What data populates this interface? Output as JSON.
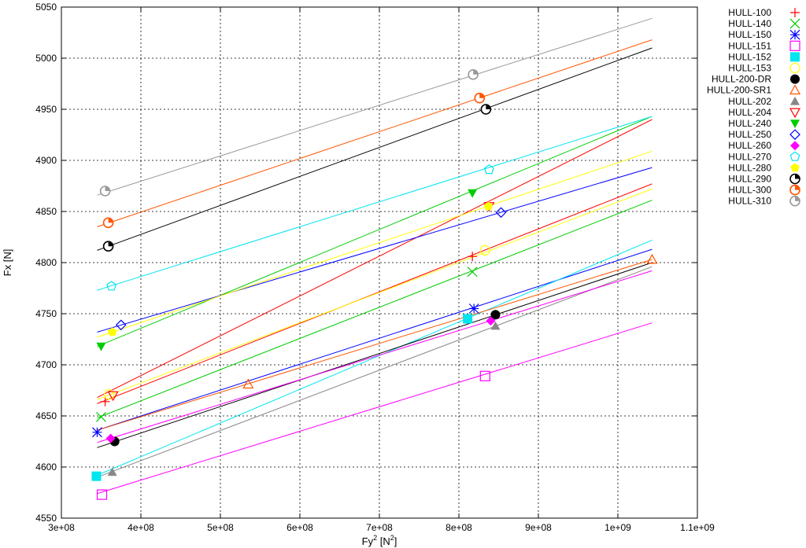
{
  "chart_data": {
    "type": "scatter",
    "title": "",
    "xlabel": "Fy",
    "xlabel_sup": "2",
    "xlabel_unit": "[N",
    "xlabel_unit_sup": "2",
    "xlabel_unit_end": "]",
    "ylabel": "Fx [N]",
    "xlim": [
      300000000,
      1100000000
    ],
    "ylim": [
      4550,
      5050
    ],
    "xticks": [
      {
        "v": 300000000,
        "label": "3e+08"
      },
      {
        "v": 400000000,
        "label": "4e+08"
      },
      {
        "v": 500000000,
        "label": "5e+08"
      },
      {
        "v": 600000000,
        "label": "6e+08"
      },
      {
        "v": 700000000,
        "label": "7e+08"
      },
      {
        "v": 800000000,
        "label": "8e+08"
      },
      {
        "v": 900000000,
        "label": "9e+08"
      },
      {
        "v": 1000000000,
        "label": "1e+09"
      },
      {
        "v": 1100000000,
        "label": "1.1e+09"
      }
    ],
    "yticks": [
      {
        "v": 4550,
        "label": "4550"
      },
      {
        "v": 4600,
        "label": "4600"
      },
      {
        "v": 4650,
        "label": "4650"
      },
      {
        "v": 4700,
        "label": "4700"
      },
      {
        "v": 4750,
        "label": "4750"
      },
      {
        "v": 4800,
        "label": "4800"
      },
      {
        "v": 4850,
        "label": "4850"
      },
      {
        "v": 4900,
        "label": "4900"
      },
      {
        "v": 4950,
        "label": "4950"
      },
      {
        "v": 5000,
        "label": "5000"
      },
      {
        "v": 5050,
        "label": "5050"
      }
    ],
    "grid": true,
    "legend_position": "outside-right-top",
    "series": [
      {
        "name": "HULL-100",
        "color": "#ff0000",
        "marker": "plus",
        "points": [
          [
            355000000,
            4664
          ],
          [
            817000000,
            4806
          ]
        ],
        "fit": [
          [
            345000000,
            4662
          ],
          [
            1043000000,
            4877
          ]
        ]
      },
      {
        "name": "HULL-140",
        "color": "#00cc00",
        "marker": "cross",
        "points": [
          [
            350000000,
            4649
          ],
          [
            817000000,
            4791
          ]
        ],
        "fit": [
          [
            345000000,
            4648
          ],
          [
            1043000000,
            4861
          ]
        ]
      },
      {
        "name": "HULL-150",
        "color": "#0000ff",
        "marker": "star",
        "points": [
          [
            345000000,
            4634
          ],
          [
            819000000,
            4755
          ]
        ],
        "fit": [
          [
            345000000,
            4636
          ],
          [
            1043000000,
            4813
          ]
        ]
      },
      {
        "name": "HULL-151",
        "color": "#ff00ff",
        "marker": "square-open",
        "points": [
          [
            351000000,
            4573
          ],
          [
            833000000,
            4689
          ]
        ],
        "fit": [
          [
            345000000,
            4574
          ],
          [
            1043000000,
            4741
          ]
        ]
      },
      {
        "name": "HULL-152",
        "color": "#00e5ee",
        "marker": "square-filled",
        "points": [
          [
            344000000,
            4591
          ],
          [
            811000000,
            4745
          ]
        ],
        "fit": [
          [
            345000000,
            4592
          ],
          [
            1043000000,
            4822
          ]
        ]
      },
      {
        "name": "HULL-153",
        "color": "#ffff00",
        "marker": "circle-open",
        "points": [
          [
            360000000,
            4671
          ],
          [
            833000000,
            4812
          ]
        ],
        "fit": [
          [
            345000000,
            4666
          ],
          [
            1043000000,
            4872
          ]
        ]
      },
      {
        "name": "HULL-200-DR",
        "color": "#000000",
        "marker": "circle-filled",
        "points": [
          [
            367000000,
            4625
          ],
          [
            846000000,
            4749
          ]
        ],
        "fit": [
          [
            345000000,
            4619
          ],
          [
            1043000000,
            4800
          ]
        ]
      },
      {
        "name": "HULL-200-SR1",
        "color": "#ff5500",
        "marker": "triangle-open",
        "points": [
          [
            535000000,
            4681
          ],
          [
            1043000000,
            4803
          ]
        ],
        "fit": [
          [
            345000000,
            4636
          ],
          [
            1043000000,
            4803
          ]
        ]
      },
      {
        "name": "HULL-202",
        "color": "#888888",
        "marker": "triangle-filled",
        "points": [
          [
            364000000,
            4595
          ],
          [
            846000000,
            4738
          ]
        ],
        "fit": [
          [
            345000000,
            4590
          ],
          [
            1043000000,
            4796
          ]
        ]
      },
      {
        "name": "HULL-204",
        "color": "#ff0000",
        "marker": "triangle-down-open",
        "points": [
          [
            365000000,
            4670
          ],
          [
            838000000,
            4855
          ]
        ],
        "fit": [
          [
            345000000,
            4668
          ],
          [
            1043000000,
            4940
          ]
        ]
      },
      {
        "name": "HULL-240",
        "color": "#00cc00",
        "marker": "triangle-down-filled",
        "points": [
          [
            350000000,
            4718
          ],
          [
            817000000,
            4868
          ]
        ],
        "fit": [
          [
            345000000,
            4718
          ],
          [
            1043000000,
            4943
          ]
        ]
      },
      {
        "name": "HULL-250",
        "color": "#0000ff",
        "marker": "diamond-open",
        "points": [
          [
            375000000,
            4739
          ],
          [
            853000000,
            4849
          ]
        ],
        "fit": [
          [
            345000000,
            4732
          ],
          [
            1043000000,
            4893
          ]
        ]
      },
      {
        "name": "HULL-260",
        "color": "#ff00ff",
        "marker": "diamond-filled",
        "points": [
          [
            362000000,
            4628
          ],
          [
            840000000,
            4743
          ]
        ],
        "fit": [
          [
            345000000,
            4624
          ],
          [
            1043000000,
            4792
          ]
        ]
      },
      {
        "name": "HULL-270",
        "color": "#00e5ee",
        "marker": "pentagon-open",
        "points": [
          [
            363000000,
            4777
          ],
          [
            838000000,
            4891
          ]
        ],
        "fit": [
          [
            345000000,
            4773
          ],
          [
            1043000000,
            4943
          ]
        ]
      },
      {
        "name": "HULL-280",
        "color": "#ffff00",
        "marker": "pentagon-filled",
        "points": [
          [
            364000000,
            4732
          ],
          [
            837000000,
            4855
          ]
        ],
        "fit": [
          [
            345000000,
            4727
          ],
          [
            1043000000,
            4909
          ]
        ]
      },
      {
        "name": "HULL-290",
        "color": "#000000",
        "marker": "circle-quarter",
        "points": [
          [
            359000000,
            4816
          ],
          [
            834000000,
            4950
          ]
        ],
        "fit": [
          [
            345000000,
            4812
          ],
          [
            1043000000,
            5010
          ]
        ]
      },
      {
        "name": "HULL-300",
        "color": "#ff5500",
        "marker": "circle-quarter",
        "points": [
          [
            359000000,
            4839
          ],
          [
            826000000,
            4961
          ]
        ],
        "fit": [
          [
            345000000,
            4835
          ],
          [
            1043000000,
            5018
          ]
        ]
      },
      {
        "name": "HULL-310",
        "color": "#999999",
        "marker": "circle-quarter",
        "points": [
          [
            355000000,
            4870
          ],
          [
            818000000,
            4984
          ]
        ],
        "fit": [
          [
            345000000,
            4866
          ],
          [
            1043000000,
            5039
          ]
        ]
      }
    ]
  }
}
